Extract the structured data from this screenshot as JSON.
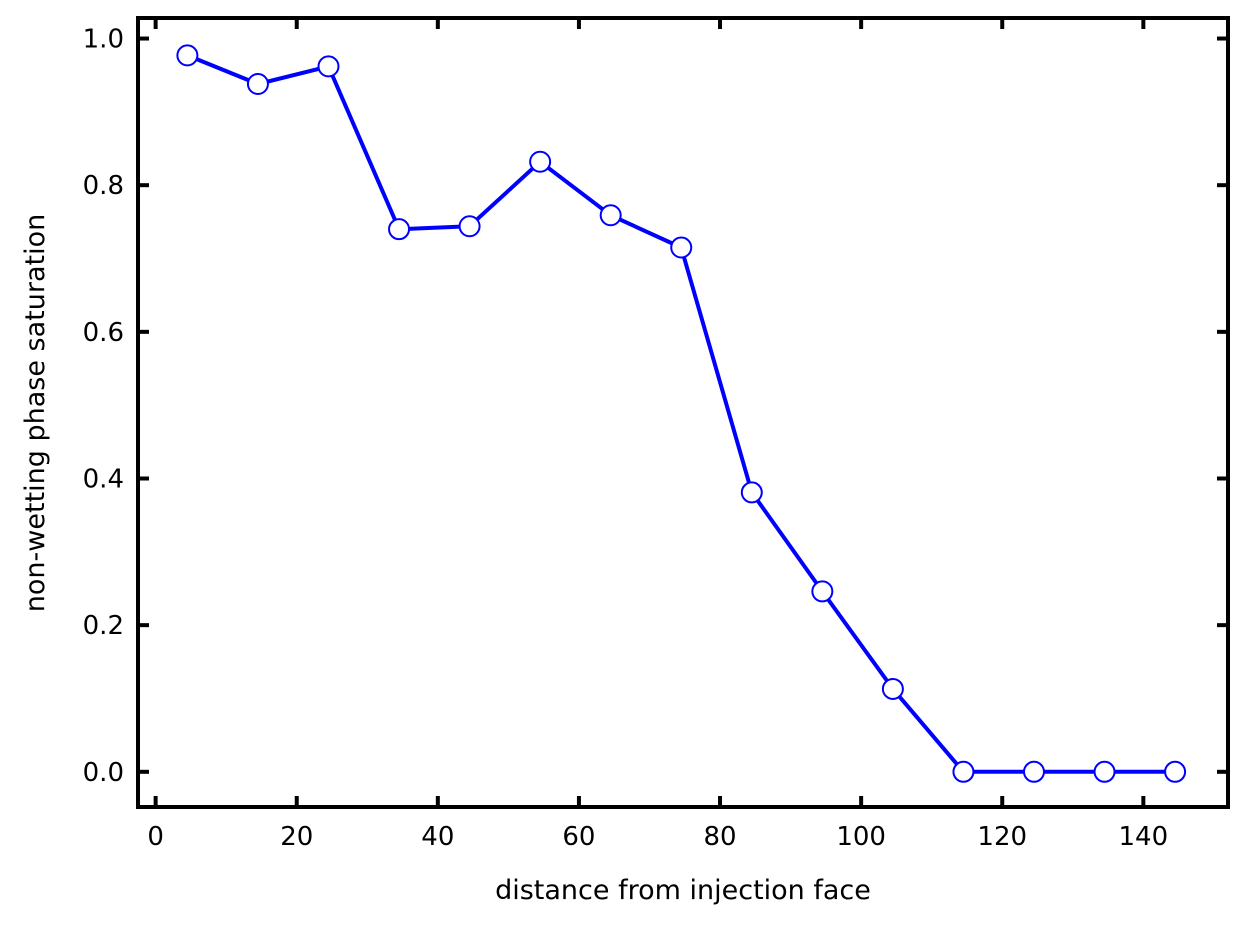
{
  "chart_data": {
    "type": "line",
    "title": "",
    "xlabel": "distance from injection face",
    "ylabel": "non-wetting phase saturation",
    "xlim": [
      -2.5,
      152
    ],
    "ylim": [
      -0.048,
      1.028
    ],
    "xticks": [
      0,
      20,
      40,
      60,
      80,
      100,
      120,
      140
    ],
    "yticks": [
      0.0,
      0.2,
      0.4,
      0.6,
      0.8,
      1.0
    ],
    "xtick_labels": [
      "0",
      "20",
      "40",
      "60",
      "80",
      "100",
      "120",
      "140"
    ],
    "ytick_labels": [
      "0.0",
      "0.2",
      "0.4",
      "0.6",
      "0.8",
      "1.0"
    ],
    "grid": false,
    "legend": "none",
    "series": [
      {
        "color": "#0000ff",
        "marker": "open-circle",
        "x": [
          4.5,
          14.5,
          24.5,
          34.5,
          44.5,
          54.5,
          64.5,
          74.5,
          84.5,
          94.5,
          104.5,
          114.5,
          124.5,
          134.5,
          144.5
        ],
        "y": [
          0.977,
          0.938,
          0.962,
          0.74,
          0.744,
          0.832,
          0.759,
          0.715,
          0.381,
          0.246,
          0.113,
          0.0,
          0.0,
          0.0,
          0.0
        ]
      }
    ]
  }
}
